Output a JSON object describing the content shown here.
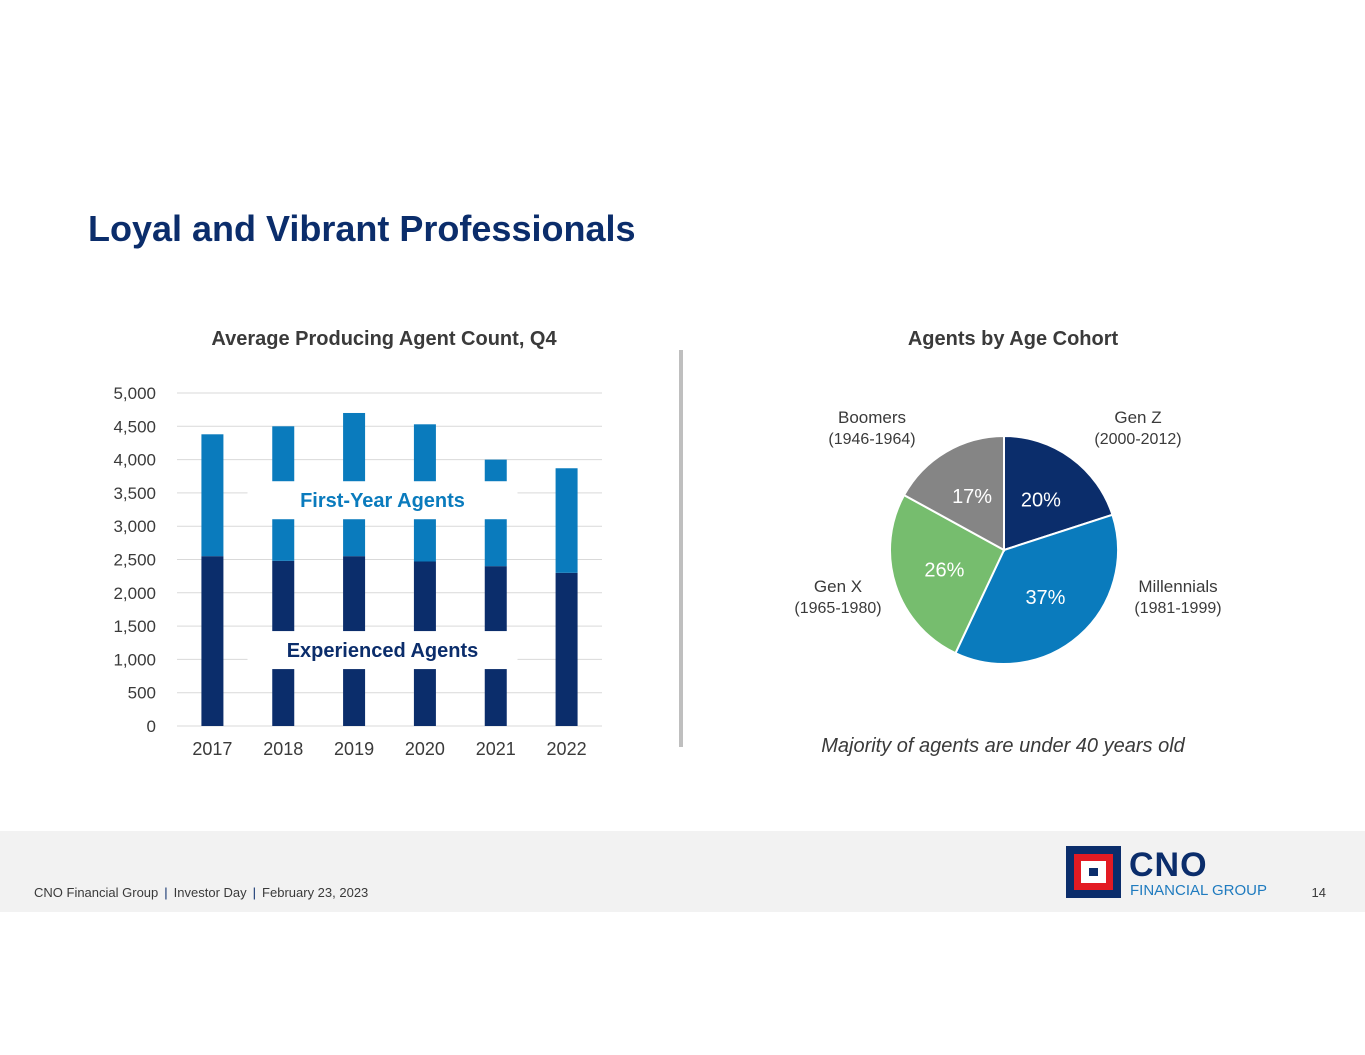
{
  "page": {
    "title": "Loyal and Vibrant Professionals"
  },
  "colors": {
    "title": "#0b2d6b",
    "experienced": "#0b2d6b",
    "first_year": "#0a7bbd",
    "gen_z": "#0b2d6b",
    "millennials": "#0a7bbd",
    "gen_x": "#76bd6e",
    "boomers": "#858585"
  },
  "chart_data": [
    {
      "type": "bar",
      "stacked": true,
      "title": "Average Producing Agent Count, Q4",
      "categories": [
        "2017",
        "2018",
        "2019",
        "2020",
        "2021",
        "2022"
      ],
      "series": [
        {
          "name": "Experienced Agents",
          "values": [
            2550,
            2480,
            2550,
            2470,
            2400,
            2300
          ]
        },
        {
          "name": "First-Year Agents",
          "values": [
            1830,
            2020,
            2150,
            2060,
            1600,
            1570
          ]
        }
      ],
      "yticks": [
        "0",
        "500",
        "1,000",
        "1,500",
        "2,000",
        "2,500",
        "3,000",
        "3,500",
        "4,000",
        "4,500",
        "5,000"
      ],
      "ylim": [
        0,
        5000
      ],
      "grid": true
    },
    {
      "type": "pie",
      "title": "Agents by Age Cohort",
      "slices": [
        {
          "name": "Gen Z",
          "range": "(2000-2012)",
          "value": 20,
          "label": "20%"
        },
        {
          "name": "Millennials",
          "range": "(1981-1999)",
          "value": 37,
          "label": "37%"
        },
        {
          "name": "Gen X",
          "range": "(1965-1980)",
          "value": 26,
          "label": "26%"
        },
        {
          "name": "Boomers",
          "range": "(1946-1964)",
          "value": 17,
          "label": "17%"
        }
      ],
      "note": "Majority of agents are under 40 years old"
    }
  ],
  "footer": {
    "company": "CNO Financial Group",
    "event": "Investor Day",
    "date": "February 23, 2023",
    "page_number": "14"
  },
  "logo": {
    "name": "CNO",
    "subtitle": "FINANCIAL GROUP"
  }
}
